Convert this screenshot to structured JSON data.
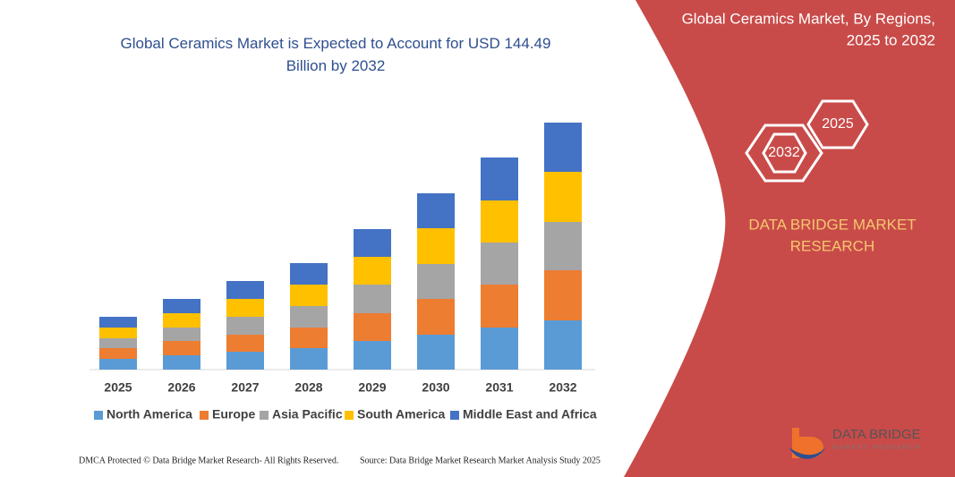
{
  "chart_data": {
    "type": "bar",
    "stacked": true,
    "title": "Global Ceramics Market is Expected to Account for USD 144.49 Billion by 2032",
    "categories": [
      "2025",
      "2026",
      "2027",
      "2028",
      "2029",
      "2030",
      "2031",
      "2032"
    ],
    "series": [
      {
        "name": "North America",
        "color": "#5b9bd5",
        "values": [
          12,
          16,
          20,
          24,
          32,
          39,
          47,
          55
        ]
      },
      {
        "name": "Europe",
        "color": "#ed7d31",
        "values": [
          12,
          16,
          19,
          23,
          31,
          40,
          48,
          56
        ]
      },
      {
        "name": "Asia Pacific",
        "color": "#a5a5a5",
        "values": [
          11,
          15,
          20,
          24,
          32,
          39,
          47,
          54
        ]
      },
      {
        "name": "South America",
        "color": "#ffc000",
        "values": [
          12,
          16,
          20,
          24,
          31,
          40,
          47,
          56
        ]
      },
      {
        "name": "Middle East and Africa",
        "color": "#4472c4",
        "values": [
          12,
          16,
          20,
          24,
          31,
          39,
          48,
          55
        ]
      }
    ],
    "legend": "bottom"
  },
  "panel": {
    "title_line1": "Global Ceramics Market, By Regions,",
    "title_line2": "2025 to 2032",
    "hex_start": "2025",
    "hex_end": "2032",
    "brand_line1": "DATA BRIDGE MARKET",
    "brand_line2": "RESEARCH",
    "logo_name": "DATA BRIDGE",
    "logo_sub": "MARKET RESEARCH"
  },
  "footer": {
    "left": "DMCA Protected © Data Bridge Market Research- All Rights Reserved.",
    "right": "Source: Data Bridge Market Research Market Analysis Study 2025"
  }
}
